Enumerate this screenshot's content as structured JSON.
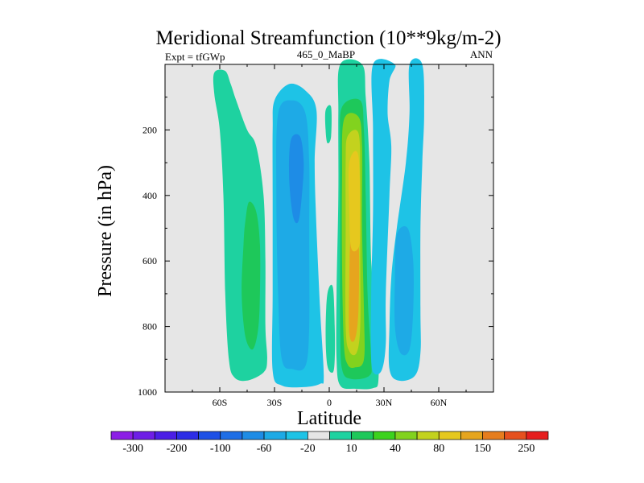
{
  "chart_data": {
    "type": "filled-contour",
    "title": "Meridional Streamfunction (10**9kg/m-2)",
    "left_label": "Expt = tfGWp",
    "center_label": "465_0_MaBP",
    "right_label": "ANN",
    "xlabel": "Latitude",
    "ylabel": "Pressure (in hPa)",
    "xlim": [
      -90,
      90
    ],
    "ylim": [
      1000,
      0
    ],
    "x_ticks": [
      {
        "value": -60,
        "label": "60S"
      },
      {
        "value": -30,
        "label": "30S"
      },
      {
        "value": 0,
        "label": "0"
      },
      {
        "value": 30,
        "label": "30N"
      },
      {
        "value": 60,
        "label": "60N"
      }
    ],
    "y_ticks": [
      {
        "value": 200,
        "label": "200"
      },
      {
        "value": 400,
        "label": "400"
      },
      {
        "value": 600,
        "label": "600"
      },
      {
        "value": 800,
        "label": "800"
      },
      {
        "value": 1000,
        "label": "1000"
      }
    ],
    "background_color": "#e6e6e6",
    "colorbar": {
      "colors": [
        "#8c1ee6",
        "#6e1ee6",
        "#4b1ee6",
        "#2d2de6",
        "#1e50e6",
        "#1e6ee6",
        "#1e8ce6",
        "#1eaae6",
        "#1ec3e6",
        "#e6e6e6",
        "#1ed2a0",
        "#1ec85a",
        "#3cd21e",
        "#82d21e",
        "#c3d21e",
        "#e6c81e",
        "#e6a51e",
        "#e67d1e",
        "#e6501e",
        "#e61e1e"
      ],
      "labels": [
        "-300",
        "-200",
        "-100",
        "-60",
        "-20",
        "10",
        "40",
        "80",
        "150",
        "250"
      ]
    },
    "cells": [
      {
        "name": "sh-high-lat-cell",
        "color": "#1ed2a0",
        "points": [
          [
            -63,
            25
          ],
          [
            -57,
            20
          ],
          [
            -54,
            60
          ],
          [
            -51,
            110
          ],
          [
            -45,
            200
          ],
          [
            -40,
            250
          ],
          [
            -36,
            400
          ],
          [
            -35,
            600
          ],
          [
            -35,
            800
          ],
          [
            -34,
            900
          ],
          [
            -36,
            940
          ],
          [
            -45,
            965
          ],
          [
            -52,
            955
          ],
          [
            -55,
            900
          ],
          [
            -57,
            700
          ],
          [
            -58,
            400
          ],
          [
            -60,
            200
          ],
          [
            -63,
            90
          ]
        ]
      },
      {
        "name": "sh-high-lat-core",
        "color": "#1ec85a",
        "points": [
          [
            -44,
            420
          ],
          [
            -40,
            450
          ],
          [
            -38,
            550
          ],
          [
            -38,
            700
          ],
          [
            -39,
            810
          ],
          [
            -42,
            870
          ],
          [
            -46,
            830
          ],
          [
            -48,
            700
          ],
          [
            -47,
            550
          ],
          [
            -46,
            480
          ]
        ]
      },
      {
        "name": "sh-tropical-cell",
        "color": "#1ec3e6",
        "points": [
          [
            -30,
            110
          ],
          [
            -22,
            60
          ],
          [
            -13,
            80
          ],
          [
            -7,
            140
          ],
          [
            -8,
            300
          ],
          [
            -7,
            500
          ],
          [
            -5,
            750
          ],
          [
            -3,
            950
          ],
          [
            -5,
            975
          ],
          [
            -14,
            985
          ],
          [
            -26,
            980
          ],
          [
            -31,
            935
          ],
          [
            -31,
            700
          ],
          [
            -31,
            400
          ],
          [
            -31,
            200
          ]
        ]
      },
      {
        "name": "sh-tropical-mid",
        "color": "#1eaae6",
        "points": [
          [
            -28,
            150
          ],
          [
            -20,
            110
          ],
          [
            -13,
            150
          ],
          [
            -11,
            300
          ],
          [
            -11,
            500
          ],
          [
            -11,
            800
          ],
          [
            -13,
            920
          ],
          [
            -20,
            930
          ],
          [
            -26,
            900
          ],
          [
            -28,
            700
          ],
          [
            -29,
            400
          ]
        ]
      },
      {
        "name": "sh-tropical-core",
        "color": "#1e8ce6",
        "points": [
          [
            -21,
            230
          ],
          [
            -16,
            220
          ],
          [
            -14,
            300
          ],
          [
            -15,
            400
          ],
          [
            -17,
            480
          ],
          [
            -20,
            460
          ],
          [
            -22,
            340
          ]
        ]
      },
      {
        "name": "equator-sliver-upper",
        "color": "#1ed2a0",
        "points": [
          [
            -2,
            140
          ],
          [
            1,
            130
          ],
          [
            1,
            220
          ],
          [
            -1,
            240
          ],
          [
            -2,
            200
          ]
        ]
      },
      {
        "name": "equator-sliver-lower",
        "color": "#1ed2a0",
        "points": [
          [
            -1,
            700
          ],
          [
            2,
            680
          ],
          [
            3,
            800
          ],
          [
            3,
            900
          ],
          [
            2,
            940
          ],
          [
            -1,
            920
          ],
          [
            -2,
            820
          ]
        ]
      },
      {
        "name": "nh-hadley-outer",
        "color": "#1ed2a0",
        "points": [
          [
            6,
            0
          ],
          [
            18,
            0
          ],
          [
            20,
            100
          ],
          [
            22,
            300
          ],
          [
            23,
            600
          ],
          [
            26,
            800
          ],
          [
            27,
            960
          ],
          [
            24,
            988
          ],
          [
            14,
            990
          ],
          [
            6,
            980
          ],
          [
            4,
            900
          ],
          [
            4,
            700
          ],
          [
            5,
            400
          ],
          [
            5,
            150
          ]
        ]
      },
      {
        "name": "nh-hadley-40",
        "color": "#1ec85a",
        "points": [
          [
            7,
            130
          ],
          [
            17,
            110
          ],
          [
            19,
            200
          ],
          [
            20,
            400
          ],
          [
            21,
            700
          ],
          [
            23,
            900
          ],
          [
            22,
            950
          ],
          [
            12,
            960
          ],
          [
            7,
            930
          ],
          [
            6,
            800
          ],
          [
            6,
            500
          ],
          [
            6,
            250
          ]
        ]
      },
      {
        "name": "nh-hadley-80",
        "color": "#82d21e",
        "points": [
          [
            8,
            170
          ],
          [
            16,
            160
          ],
          [
            18,
            250
          ],
          [
            18,
            500
          ],
          [
            19,
            750
          ],
          [
            19,
            900
          ],
          [
            14,
            925
          ],
          [
            10,
            915
          ],
          [
            8,
            850
          ],
          [
            7,
            600
          ],
          [
            7,
            350
          ]
        ]
      },
      {
        "name": "nh-hadley-150",
        "color": "#c3d21e",
        "points": [
          [
            10,
            220
          ],
          [
            16,
            210
          ],
          [
            17,
            350
          ],
          [
            17,
            600
          ],
          [
            17,
            800
          ],
          [
            15,
            880
          ],
          [
            11,
            875
          ],
          [
            9,
            800
          ],
          [
            9,
            500
          ],
          [
            9,
            300
          ]
        ]
      },
      {
        "name": "nh-hadley-core",
        "color": "#e6a51e",
        "points": [
          [
            12,
            520
          ],
          [
            16,
            540
          ],
          [
            16,
            750
          ],
          [
            14,
            840
          ],
          [
            11,
            820
          ],
          [
            11,
            650
          ]
        ]
      },
      {
        "name": "nh-hadley-peak",
        "color": "#e6c81e",
        "points": [
          [
            11,
            300
          ],
          [
            16,
            280
          ],
          [
            17,
            500
          ],
          [
            16,
            560
          ],
          [
            12,
            560
          ],
          [
            11,
            450
          ]
        ]
      },
      {
        "name": "nh-ferrel-cell",
        "color": "#1ec3e6",
        "points": [
          [
            24,
            0
          ],
          [
            36,
            0
          ],
          [
            33,
            50
          ],
          [
            32,
            150
          ],
          [
            34,
            250
          ],
          [
            33,
            400
          ],
          [
            31,
            700
          ],
          [
            31,
            850
          ],
          [
            29,
            930
          ],
          [
            25,
            945
          ],
          [
            23,
            900
          ],
          [
            23,
            700
          ],
          [
            24,
            450
          ],
          [
            24,
            200
          ]
        ]
      },
      {
        "name": "nh-ferrel-tail",
        "color": "#1ec3e6",
        "points": [
          [
            44,
            0
          ],
          [
            51,
            0
          ],
          [
            52,
            150
          ],
          [
            51,
            300
          ],
          [
            50,
            500
          ],
          [
            50,
            750
          ],
          [
            50,
            880
          ],
          [
            47,
            950
          ],
          [
            38,
            965
          ],
          [
            33,
            930
          ],
          [
            33,
            800
          ],
          [
            34,
            650
          ],
          [
            37,
            500
          ],
          [
            42,
            300
          ],
          [
            44,
            150
          ]
        ]
      },
      {
        "name": "nh-ferrel-core",
        "color": "#1eaae6",
        "points": [
          [
            37,
            520
          ],
          [
            43,
            500
          ],
          [
            46,
            600
          ],
          [
            46,
            750
          ],
          [
            44,
            870
          ],
          [
            39,
            880
          ],
          [
            36,
            800
          ],
          [
            36,
            650
          ]
        ]
      }
    ]
  }
}
